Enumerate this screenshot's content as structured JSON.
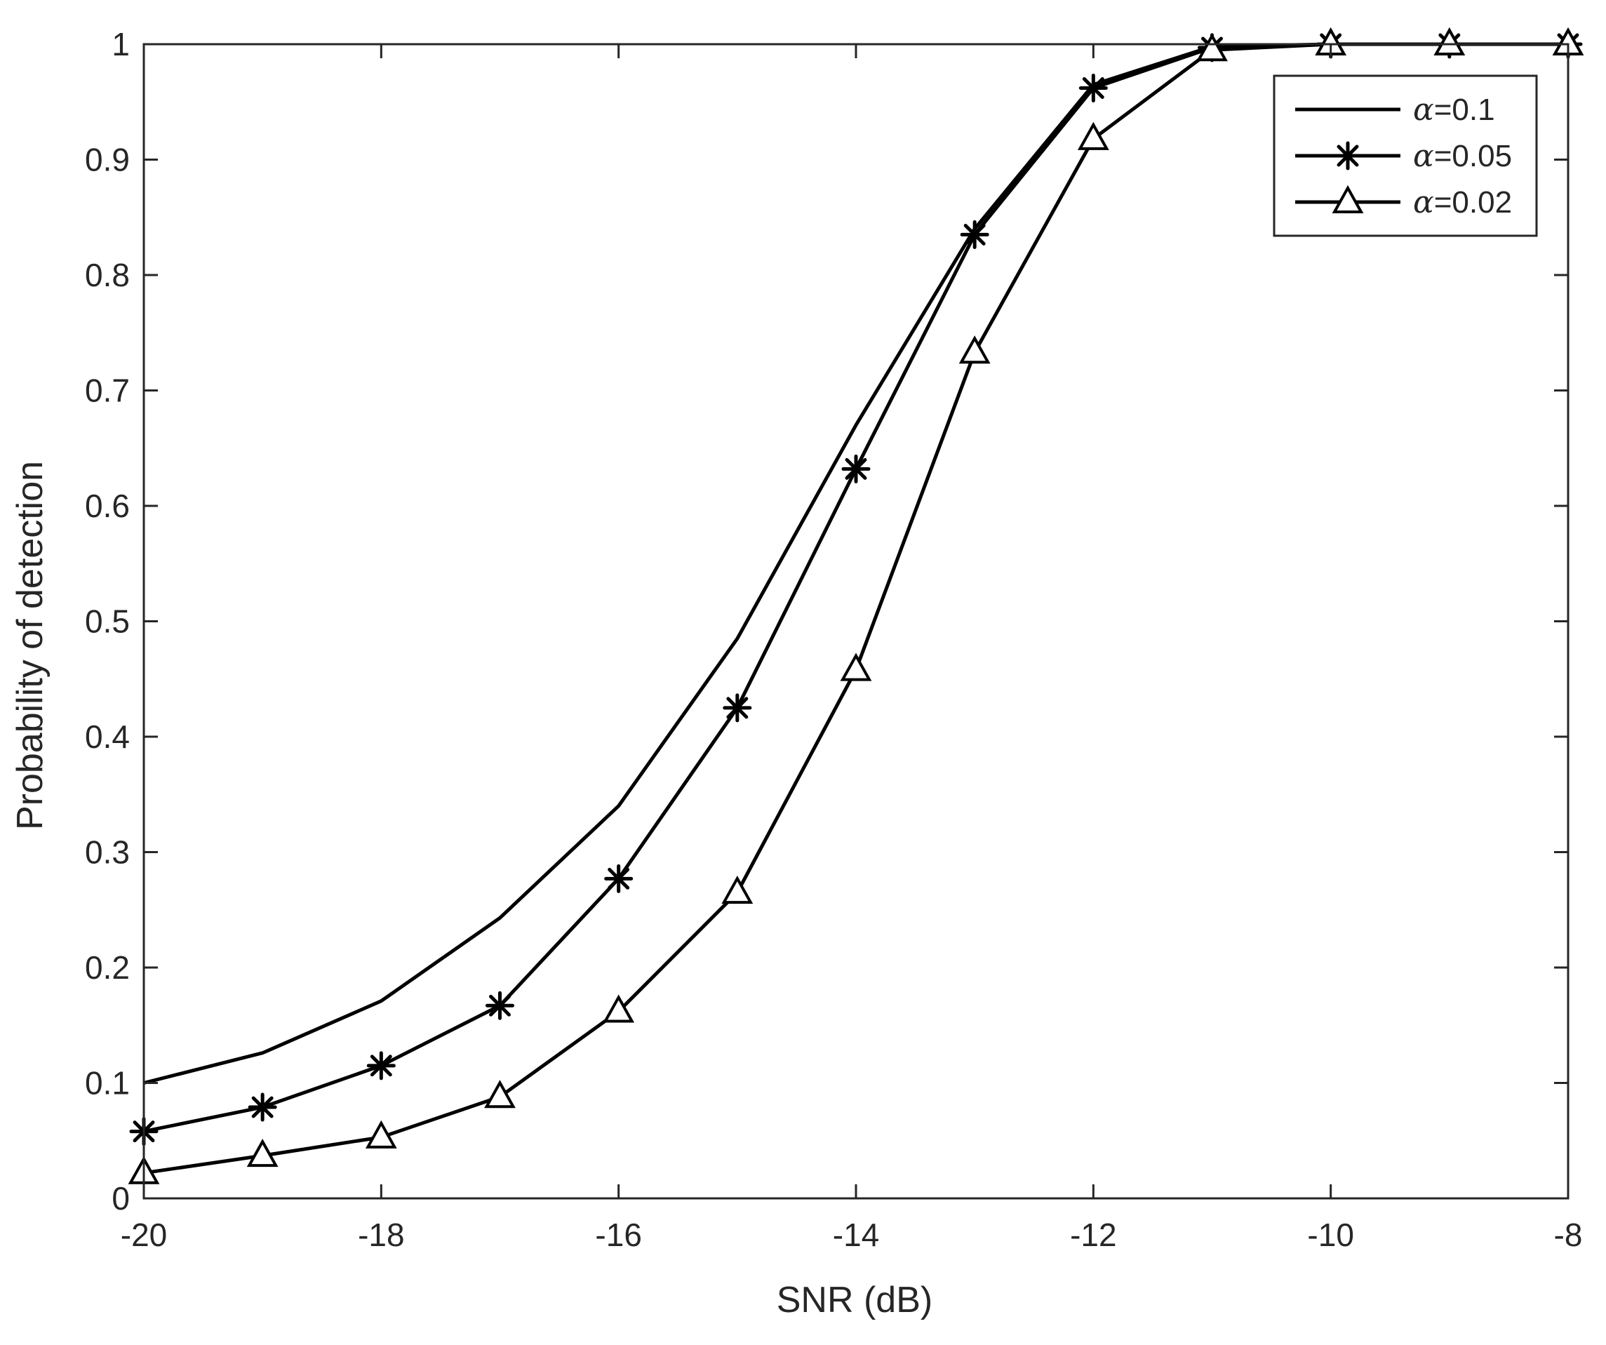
{
  "chart_data": {
    "type": "line",
    "title": "",
    "xlabel": "SNR (dB)",
    "ylabel": "Probability of detection",
    "xlim": [
      -20,
      -8
    ],
    "ylim": [
      0,
      1
    ],
    "xticks": [
      -20,
      -18,
      -16,
      -14,
      -12,
      -10,
      -8
    ],
    "yticks": [
      0,
      0.1,
      0.2,
      0.3,
      0.4,
      0.5,
      0.6,
      0.7,
      0.8,
      0.9,
      1
    ],
    "xtick_labels": [
      "-20",
      "-18",
      "-16",
      "-14",
      "-12",
      "-10",
      "-8"
    ],
    "ytick_labels": [
      "0",
      "0.1",
      "0.2",
      "0.3",
      "0.4",
      "0.5",
      "0.6",
      "0.7",
      "0.8",
      "0.9",
      "1"
    ],
    "grid": false,
    "legend_position": "top-right",
    "x": [
      -20,
      -19,
      -18,
      -17,
      -16,
      -15,
      -14,
      -13,
      -12,
      -11,
      -10,
      -9,
      -8
    ],
    "series": [
      {
        "name_symbol": "α",
        "name_value": "=0.1",
        "marker": "none",
        "color": "#000000",
        "values": [
          0.1,
          0.126,
          0.171,
          0.243,
          0.34,
          0.485,
          0.67,
          0.84,
          0.965,
          0.998,
          1.0,
          1.0,
          1.0
        ]
      },
      {
        "name_symbol": "α",
        "name_value": "=0.05",
        "marker": "asterisk",
        "color": "#000000",
        "values": [
          0.058,
          0.079,
          0.115,
          0.167,
          0.277,
          0.425,
          0.632,
          0.835,
          0.962,
          0.997,
          1.0,
          1.0,
          1.0
        ]
      },
      {
        "name_symbol": "α",
        "name_value": "=0.02",
        "marker": "triangle",
        "color": "#000000",
        "values": [
          0.022,
          0.037,
          0.053,
          0.088,
          0.162,
          0.265,
          0.458,
          0.733,
          0.918,
          0.995,
          1.0,
          1.0,
          1.0
        ]
      }
    ]
  }
}
